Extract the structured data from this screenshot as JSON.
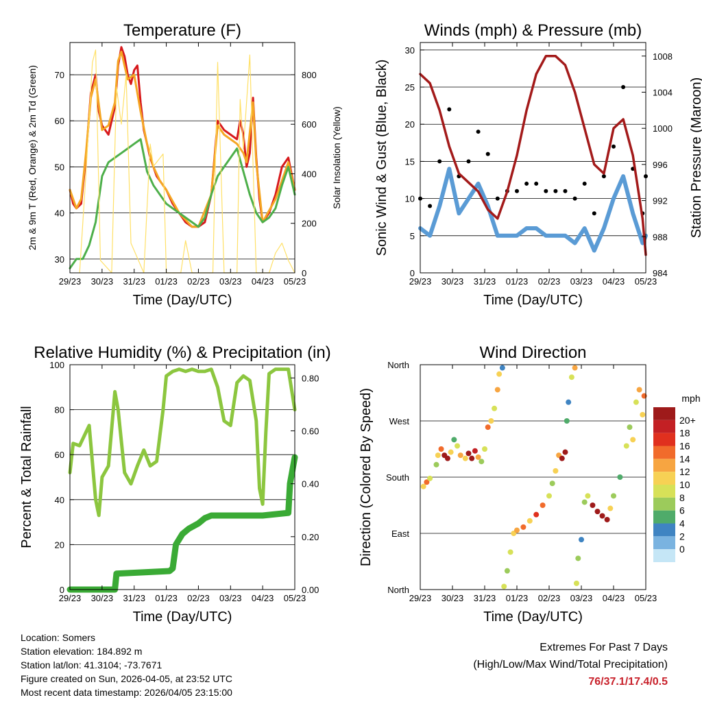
{
  "colors": {
    "red": "#d7191c",
    "orange": "#f5a623",
    "green": "#4daf4a",
    "yellow": "#ffe066",
    "maroon": "#a31a1a",
    "blue": "#5a9bd5",
    "black": "#000000",
    "rh_green": "#8cc63f",
    "precip_green": "#3aaa35",
    "extremes_red": "#c8202a"
  },
  "x_ticks": [
    "29/23",
    "30/23",
    "31/23",
    "01/23",
    "02/23",
    "03/23",
    "04/23",
    "05/23"
  ],
  "chart_data": [
    {
      "type": "line",
      "title": "Temperature (F)",
      "xlabel": "Time (Day/UTC)",
      "ylabel": "2m & 9m T (Red, Orange) & 2m Td (Green)",
      "y2label": "Solar Insolation (Yellow)",
      "ylim": [
        27,
        77
      ],
      "yticks": [
        30,
        40,
        50,
        60,
        70
      ],
      "y2lim": [
        0,
        930
      ],
      "y2ticks": [
        0,
        200,
        400,
        600,
        800
      ],
      "xlim": [
        0,
        7
      ],
      "series": [
        {
          "name": "2m T",
          "color": "red",
          "x": [
            0,
            0.1,
            0.2,
            0.35,
            0.5,
            0.65,
            0.8,
            0.9,
            1.0,
            1.1,
            1.2,
            1.3,
            1.4,
            1.5,
            1.6,
            1.7,
            1.8,
            1.9,
            2.0,
            2.1,
            2.2,
            2.3,
            2.4,
            2.5,
            2.6,
            2.7,
            2.8,
            2.9,
            3.0,
            3.2,
            3.4,
            3.6,
            3.8,
            4.0,
            4.2,
            4.4,
            4.6,
            4.8,
            5.0,
            5.2,
            5.3,
            5.4,
            5.5,
            5.6,
            5.7,
            5.8,
            5.9,
            6.0,
            6.2,
            6.4,
            6.6,
            6.8,
            7.0
          ],
          "y": [
            45,
            42,
            41,
            42,
            52,
            66,
            70,
            62,
            59,
            58,
            57,
            60,
            63,
            72,
            76,
            74,
            70,
            68,
            71,
            72,
            64,
            58,
            55,
            52,
            50,
            48,
            47,
            46,
            45,
            42,
            40,
            38,
            37,
            37,
            38,
            44,
            60,
            58,
            57,
            56,
            60,
            57,
            50,
            53,
            65,
            52,
            43,
            38,
            40,
            44,
            50,
            52,
            45
          ]
        },
        {
          "name": "9m T",
          "color": "orange",
          "x": [
            0,
            0.2,
            0.35,
            0.5,
            0.65,
            0.8,
            1.0,
            1.2,
            1.4,
            1.5,
            1.6,
            1.8,
            2.0,
            2.2,
            2.4,
            2.6,
            2.8,
            3.0,
            3.4,
            3.8,
            4.0,
            4.4,
            4.6,
            4.8,
            5.0,
            5.2,
            5.4,
            5.5,
            5.7,
            5.8,
            6.0,
            6.4,
            6.8,
            7.0
          ],
          "y": [
            45,
            41,
            43,
            53,
            65,
            69,
            58,
            59,
            64,
            73,
            75,
            69,
            70,
            62,
            55,
            50,
            47,
            45,
            40,
            37,
            37,
            44,
            59,
            57,
            56,
            55,
            53,
            51,
            64,
            51,
            38,
            43,
            51,
            45
          ]
        },
        {
          "name": "2m Td",
          "color": "green",
          "x": [
            0,
            0.2,
            0.4,
            0.6,
            0.8,
            1.0,
            1.2,
            1.4,
            1.6,
            1.8,
            2.0,
            2.2,
            2.4,
            2.6,
            2.8,
            3.0,
            3.2,
            3.4,
            3.6,
            3.8,
            4.0,
            4.2,
            4.4,
            4.6,
            4.8,
            5.0,
            5.2,
            5.4,
            5.6,
            5.8,
            6.0,
            6.2,
            6.4,
            6.6,
            6.8,
            7.0
          ],
          "y": [
            28,
            30,
            30,
            33,
            38,
            48,
            51,
            52,
            53,
            54,
            55,
            56,
            49,
            46,
            44,
            42,
            41,
            40,
            39,
            38,
            37,
            39,
            44,
            48,
            50,
            52,
            54,
            49,
            44,
            40,
            38,
            39,
            41,
            46,
            50,
            44
          ]
        },
        {
          "name": "Solar Insolation",
          "color": "yellow",
          "axis": "y2",
          "x": [
            0.3,
            0.5,
            0.7,
            0.8,
            0.95,
            1.3,
            1.45,
            1.6,
            1.75,
            1.9,
            2.3,
            2.5,
            2.6,
            2.9,
            3.0,
            3.45,
            3.6,
            3.8,
            4.45,
            4.6,
            4.8,
            5.2,
            5.3,
            5.4,
            5.6,
            5.8,
            6.2,
            6.4,
            6.6,
            6.8,
            7.0
          ],
          "y": [
            0,
            400,
            850,
            900,
            50,
            0,
            750,
            600,
            800,
            120,
            0,
            520,
            430,
            480,
            0,
            0,
            130,
            0,
            0,
            850,
            0,
            0,
            700,
            500,
            880,
            0,
            0,
            80,
            120,
            50,
            0
          ]
        }
      ]
    },
    {
      "type": "line",
      "title": "Winds (mph) & Pressure (mb)",
      "xlabel": "Time (Day/UTC)",
      "ylabel": "Sonic Wind & Gust (Blue, Black)",
      "y2label": "Station Pressure (Maroon)",
      "ylim": [
        0,
        31
      ],
      "yticks": [
        0,
        5,
        10,
        15,
        20,
        25,
        30
      ],
      "y2lim": [
        984,
        1009.5
      ],
      "y2ticks": [
        984,
        988,
        992,
        996,
        1000,
        1004,
        1008
      ],
      "xlim": [
        0,
        7
      ],
      "series": [
        {
          "name": "Sonic Wind",
          "color": "blue",
          "x": [
            0,
            0.3,
            0.6,
            0.9,
            1.2,
            1.5,
            1.8,
            2.1,
            2.4,
            2.7,
            3.0,
            3.3,
            3.6,
            3.9,
            4.2,
            4.5,
            4.8,
            5.1,
            5.4,
            5.7,
            6.0,
            6.3,
            6.6,
            6.9,
            7.0
          ],
          "y": [
            6,
            5,
            9,
            14,
            8,
            10,
            12,
            9,
            5,
            5,
            5,
            6,
            6,
            5,
            5,
            5,
            4,
            6,
            3,
            6,
            10,
            13,
            8,
            4,
            5
          ]
        },
        {
          "name": "Gust",
          "color": "black",
          "x": [
            0,
            0.3,
            0.6,
            0.9,
            1.2,
            1.5,
            1.8,
            2.1,
            2.4,
            2.7,
            3.0,
            3.3,
            3.6,
            3.9,
            4.2,
            4.5,
            4.8,
            5.1,
            5.4,
            5.7,
            6.0,
            6.3,
            6.6,
            6.9,
            7.0
          ],
          "y": [
            10,
            9,
            15,
            22,
            13,
            15,
            19,
            16,
            10,
            11,
            11,
            12,
            12,
            11,
            11,
            11,
            10,
            12,
            8,
            13,
            17,
            25,
            14,
            8,
            13
          ]
        },
        {
          "name": "Station Pressure",
          "color": "maroon",
          "axis": "y2",
          "x": [
            0,
            0.3,
            0.6,
            0.9,
            1.2,
            1.5,
            1.8,
            2.1,
            2.4,
            2.7,
            3.0,
            3.3,
            3.6,
            3.9,
            4.2,
            4.5,
            4.8,
            5.1,
            5.4,
            5.7,
            6.0,
            6.3,
            6.6,
            6.9,
            7.0
          ],
          "y": [
            1006,
            1005,
            1002,
            998,
            995,
            994,
            993,
            991,
            990,
            993,
            997,
            1002,
            1006,
            1008,
            1008,
            1007,
            1004,
            1000,
            996,
            995,
            1000,
            1001,
            997,
            990,
            986
          ]
        }
      ]
    },
    {
      "type": "line",
      "title": "Relative Humidity (%) & Precipitation (in)",
      "xlabel": "Time (Day/UTC)",
      "ylabel": "Percent & Total Rainfall",
      "ylim": [
        0,
        100
      ],
      "yticks": [
        0,
        20,
        40,
        60,
        80,
        100
      ],
      "y2lim": [
        0,
        0.85
      ],
      "y2ticks": [
        "0.00",
        "0.20",
        "0.40",
        "0.60",
        "0.80"
      ],
      "xlim": [
        0,
        7
      ],
      "series": [
        {
          "name": "Relative Humidity",
          "color": "rh_green",
          "x": [
            0,
            0.1,
            0.3,
            0.5,
            0.6,
            0.8,
            0.9,
            1.0,
            1.2,
            1.4,
            1.5,
            1.7,
            1.9,
            2.1,
            2.3,
            2.5,
            2.7,
            2.9,
            3.0,
            3.2,
            3.4,
            3.6,
            3.8,
            4.0,
            4.2,
            4.4,
            4.6,
            4.8,
            5.0,
            5.2,
            5.4,
            5.6,
            5.8,
            5.9,
            6.0,
            6.1,
            6.2,
            6.4,
            6.6,
            6.8,
            7.0
          ],
          "y": [
            52,
            65,
            64,
            70,
            73,
            40,
            33,
            50,
            55,
            88,
            80,
            52,
            47,
            55,
            62,
            55,
            57,
            80,
            95,
            97,
            98,
            97,
            98,
            97,
            97,
            98,
            90,
            75,
            73,
            92,
            95,
            93,
            75,
            45,
            38,
            70,
            96,
            98,
            98,
            98,
            80
          ]
        },
        {
          "name": "Total Precipitation",
          "color": "precip_green",
          "axis": "y2",
          "x": [
            0,
            1.4,
            1.45,
            3.1,
            3.2,
            3.3,
            3.5,
            3.7,
            4.0,
            4.2,
            4.4,
            5.0,
            6.0,
            6.8,
            6.85,
            7.0
          ],
          "y": [
            0,
            0,
            0.06,
            0.07,
            0.08,
            0.17,
            0.21,
            0.23,
            0.25,
            0.27,
            0.28,
            0.28,
            0.28,
            0.29,
            0.4,
            0.5
          ]
        }
      ]
    },
    {
      "type": "scatter",
      "title": "Wind Direction",
      "xlabel": "Time (Day/UTC)",
      "ylabel": "Direction (Colored By Speed)",
      "ylim": [
        0,
        360
      ],
      "ytick_labels": [
        "North",
        "East",
        "South",
        "West",
        "North"
      ],
      "xlim": [
        0,
        7
      ],
      "colorbar_title": "mph",
      "colorbar_labels": [
        "20+",
        "18",
        "16",
        "14",
        "12",
        "10",
        "8",
        "6",
        "4",
        "2",
        "0"
      ],
      "colorbar_colors": [
        "#9e1a1a",
        "#c32024",
        "#e0301e",
        "#f16b2b",
        "#f7a541",
        "#f7d154",
        "#d7e158",
        "#9ccb5b",
        "#4fab6a",
        "#3f84c2",
        "#7ab3e0",
        "#c5e6f6"
      ],
      "points": [
        {
          "x": 0.1,
          "y": 165,
          "s": 6
        },
        {
          "x": 0.2,
          "y": 172,
          "s": 8
        },
        {
          "x": 0.3,
          "y": 178,
          "s": 5
        },
        {
          "x": 0.5,
          "y": 200,
          "s": 4
        },
        {
          "x": 0.55,
          "y": 215,
          "s": 6
        },
        {
          "x": 0.65,
          "y": 225,
          "s": 8
        },
        {
          "x": 0.75,
          "y": 215,
          "s": 14
        },
        {
          "x": 0.85,
          "y": 210,
          "s": 13
        },
        {
          "x": 0.95,
          "y": 220,
          "s": 6
        },
        {
          "x": 1.05,
          "y": 240,
          "s": 3
        },
        {
          "x": 1.15,
          "y": 230,
          "s": 5
        },
        {
          "x": 1.25,
          "y": 215,
          "s": 7
        },
        {
          "x": 1.4,
          "y": 210,
          "s": 6
        },
        {
          "x": 1.5,
          "y": 218,
          "s": 14
        },
        {
          "x": 1.6,
          "y": 210,
          "s": 12
        },
        {
          "x": 1.7,
          "y": 222,
          "s": 10
        },
        {
          "x": 1.8,
          "y": 212,
          "s": 7
        },
        {
          "x": 1.9,
          "y": 205,
          "s": 4
        },
        {
          "x": 2.0,
          "y": 225,
          "s": 5
        },
        {
          "x": 2.1,
          "y": 260,
          "s": 8
        },
        {
          "x": 2.2,
          "y": 270,
          "s": 6
        },
        {
          "x": 2.3,
          "y": 290,
          "s": 5
        },
        {
          "x": 2.4,
          "y": 320,
          "s": 7
        },
        {
          "x": 2.45,
          "y": 345,
          "s": 6
        },
        {
          "x": 2.55,
          "y": 355,
          "s": 2
        },
        {
          "x": 2.6,
          "y": 5,
          "s": 5
        },
        {
          "x": 2.7,
          "y": 30,
          "s": 4
        },
        {
          "x": 2.8,
          "y": 60,
          "s": 5
        },
        {
          "x": 2.9,
          "y": 90,
          "s": 6
        },
        {
          "x": 3.0,
          "y": 95,
          "s": 7
        },
        {
          "x": 3.2,
          "y": 100,
          "s": 8
        },
        {
          "x": 3.4,
          "y": 110,
          "s": 6
        },
        {
          "x": 3.6,
          "y": 120,
          "s": 9
        },
        {
          "x": 3.8,
          "y": 135,
          "s": 8
        },
        {
          "x": 4.0,
          "y": 150,
          "s": 5
        },
        {
          "x": 4.1,
          "y": 170,
          "s": 4
        },
        {
          "x": 4.2,
          "y": 190,
          "s": 6
        },
        {
          "x": 4.3,
          "y": 215,
          "s": 7
        },
        {
          "x": 4.4,
          "y": 210,
          "s": 13
        },
        {
          "x": 4.5,
          "y": 220,
          "s": 11
        },
        {
          "x": 4.55,
          "y": 270,
          "s": 3
        },
        {
          "x": 4.6,
          "y": 300,
          "s": 2
        },
        {
          "x": 4.7,
          "y": 340,
          "s": 5
        },
        {
          "x": 4.8,
          "y": 355,
          "s": 7
        },
        {
          "x": 4.85,
          "y": 10,
          "s": 5
        },
        {
          "x": 4.9,
          "y": 50,
          "s": 4
        },
        {
          "x": 5.0,
          "y": 80,
          "s": 2
        },
        {
          "x": 5.1,
          "y": 140,
          "s": 4
        },
        {
          "x": 5.2,
          "y": 150,
          "s": 5
        },
        {
          "x": 5.35,
          "y": 135,
          "s": 13
        },
        {
          "x": 5.5,
          "y": 125,
          "s": 15
        },
        {
          "x": 5.65,
          "y": 118,
          "s": 14
        },
        {
          "x": 5.8,
          "y": 112,
          "s": 12
        },
        {
          "x": 5.9,
          "y": 130,
          "s": 6
        },
        {
          "x": 6.0,
          "y": 150,
          "s": 4
        },
        {
          "x": 6.2,
          "y": 180,
          "s": 3
        },
        {
          "x": 6.4,
          "y": 230,
          "s": 5
        },
        {
          "x": 6.5,
          "y": 260,
          "s": 4
        },
        {
          "x": 6.6,
          "y": 240,
          "s": 6
        },
        {
          "x": 6.7,
          "y": 300,
          "s": 5
        },
        {
          "x": 6.8,
          "y": 320,
          "s": 7
        },
        {
          "x": 6.9,
          "y": 280,
          "s": 6
        },
        {
          "x": 6.95,
          "y": 310,
          "s": 8
        }
      ]
    }
  ],
  "info": {
    "location": "Location: Somers",
    "elevation": "Station elevation: 184.892 m",
    "latlon": "Station lat/lon: 41.3104; -73.7671",
    "created": "Figure created on Sun, 2026-04-05, at 23:52 UTC",
    "recent": "Most recent data timestamp: 2026/04/05 23:15:00"
  },
  "extremes": {
    "line1": "Extremes For Past 7 Days",
    "line2": "(High/Low/Max Wind/Total Precipitation)",
    "values": "76/37.1/17.4/0.5"
  }
}
